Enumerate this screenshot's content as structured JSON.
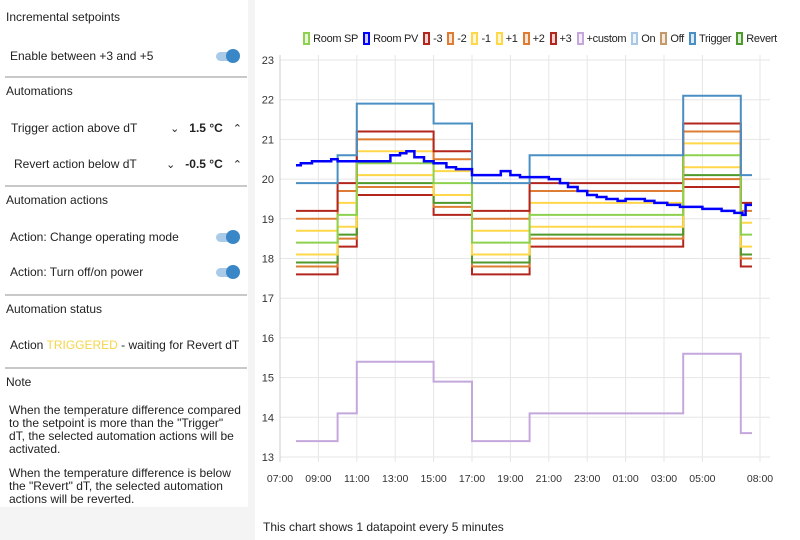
{
  "left": {
    "incremental": {
      "title": "Incremental setpoints",
      "enable_label": "Enable between +3 and +5",
      "enabled": true
    },
    "automations": {
      "title": "Automations",
      "trigger_label": "Trigger action above dT",
      "trigger_value": "1.5 °C",
      "revert_label": "Revert action below dT",
      "revert_value": "-0.5 °C",
      "down_icon": "chevron-down",
      "up_icon": "chevron-up"
    },
    "actions": {
      "title": "Automation actions",
      "mode_label": "Action: Change operating mode",
      "mode_on": true,
      "power_label": "Action: Turn off/on power",
      "power_on": true
    },
    "status": {
      "title": "Automation status",
      "prefix": "Action",
      "state": "TRIGGERED",
      "suffix": "- waiting for Revert dT",
      "state_color": "#f5d547"
    },
    "note": {
      "title": "Note",
      "p1": "When the temperature difference compared to the setpoint is more than the \"Trigger\" dT, the selected automation actions will be activated.",
      "p2": "When the temperature difference is below the \"Revert\" dT, the selected automation actions will be reverted."
    }
  },
  "footer": "This chart shows 1 datapoint every 5 minutes",
  "chart_data": {
    "type": "line",
    "step": true,
    "grid": true,
    "legend_position": "top",
    "ylim": [
      13,
      23
    ],
    "yticks": [
      "13",
      "14",
      "15",
      "16",
      "17",
      "18",
      "19",
      "20",
      "21",
      "22",
      "23"
    ],
    "xticks": [
      "07:00",
      "09:00",
      "11:00",
      "13:00",
      "15:00",
      "17:00",
      "19:00",
      "21:00",
      "23:00",
      "01:00",
      "03:00",
      "05:00",
      "08:00"
    ],
    "xlim": [
      "07:00",
      "08:00"
    ],
    "breakpoints": [
      "07:50",
      "10:00",
      "11:00",
      "15:00",
      "17:00",
      "20:00",
      "04:00",
      "07:00",
      "07:35"
    ],
    "series": [
      {
        "name": "Room SP",
        "color": "#8ed14f",
        "values": [
          18.4,
          19.1,
          20.4,
          19.9,
          18.4,
          19.1,
          20.6,
          18.6
        ]
      },
      {
        "name": "Room PV",
        "color": "#0000ff",
        "points": [
          [
            "07:50",
            20.35
          ],
          [
            "08:05",
            20.4
          ],
          [
            "08:40",
            20.45
          ],
          [
            "09:15",
            20.45
          ],
          [
            "09:40",
            20.5
          ],
          [
            "10:00",
            20.45
          ],
          [
            "11:00",
            20.45
          ],
          [
            "12:00",
            20.45
          ],
          [
            "12:45",
            20.6
          ],
          [
            "13:15",
            20.65
          ],
          [
            "13:35",
            20.7
          ],
          [
            "14:00",
            20.55
          ],
          [
            "14:30",
            20.45
          ],
          [
            "15:00",
            20.4
          ],
          [
            "15:40",
            20.3
          ],
          [
            "16:10",
            20.25
          ],
          [
            "17:00",
            20.1
          ],
          [
            "18:30",
            20.2
          ],
          [
            "19:00",
            20.1
          ],
          [
            "19:30",
            20.05
          ],
          [
            "20:30",
            20.05
          ],
          [
            "21:00",
            20.0
          ],
          [
            "21:35",
            19.9
          ],
          [
            "22:00",
            19.8
          ],
          [
            "22:30",
            19.7
          ],
          [
            "23:00",
            19.6
          ],
          [
            "23:30",
            19.55
          ],
          [
            "00:00",
            19.5
          ],
          [
            "00:35",
            19.45
          ],
          [
            "01:00",
            19.5
          ],
          [
            "02:00",
            19.45
          ],
          [
            "02:30",
            19.4
          ],
          [
            "03:10",
            19.35
          ],
          [
            "03:50",
            19.3
          ],
          [
            "05:00",
            19.25
          ],
          [
            "06:00",
            19.2
          ],
          [
            "06:40",
            19.15
          ],
          [
            "07:05",
            19.1
          ],
          [
            "07:15",
            19.35
          ],
          [
            "07:35",
            19.35
          ]
        ]
      },
      {
        "name": "-3",
        "color": "#b3261e",
        "values": [
          17.6,
          18.3,
          19.6,
          19.1,
          17.6,
          18.3,
          19.8,
          17.8
        ]
      },
      {
        "name": "-2",
        "color": "#de7c33",
        "values": [
          17.8,
          18.5,
          19.8,
          19.3,
          17.8,
          18.5,
          20.0,
          18.0
        ]
      },
      {
        "name": "-1",
        "color": "#ffd84a",
        "values": [
          18.1,
          18.8,
          20.1,
          19.6,
          18.1,
          18.8,
          20.3,
          18.3
        ]
      },
      {
        "name": "+1",
        "color": "#ffd84a",
        "values": [
          18.7,
          19.4,
          20.7,
          20.2,
          18.7,
          19.4,
          20.9,
          18.9
        ]
      },
      {
        "name": "+2",
        "color": "#de7c33",
        "values": [
          19.0,
          19.7,
          21.0,
          20.5,
          19.0,
          19.7,
          21.2,
          19.2
        ]
      },
      {
        "name": "+3",
        "color": "#b3261e",
        "values": [
          19.2,
          19.9,
          21.2,
          20.7,
          19.2,
          19.9,
          21.4,
          19.4
        ]
      },
      {
        "name": "+custom",
        "color": "#c4a8dc",
        "values": [
          13.4,
          14.1,
          15.4,
          14.9,
          13.4,
          14.1,
          15.6,
          13.6
        ]
      },
      {
        "name": "On",
        "color": "#a8c8e6",
        "values": []
      },
      {
        "name": "Off",
        "color": "#c49a6c",
        "values": []
      },
      {
        "name": "Trigger",
        "color": "#4a8fc4",
        "values": [
          19.9,
          20.6,
          21.9,
          21.4,
          19.9,
          20.6,
          22.1,
          20.1
        ]
      },
      {
        "name": "Revert",
        "color": "#4f9a2c",
        "values": [
          17.9,
          18.6,
          19.9,
          19.4,
          17.9,
          18.6,
          20.1,
          18.1
        ]
      }
    ]
  }
}
